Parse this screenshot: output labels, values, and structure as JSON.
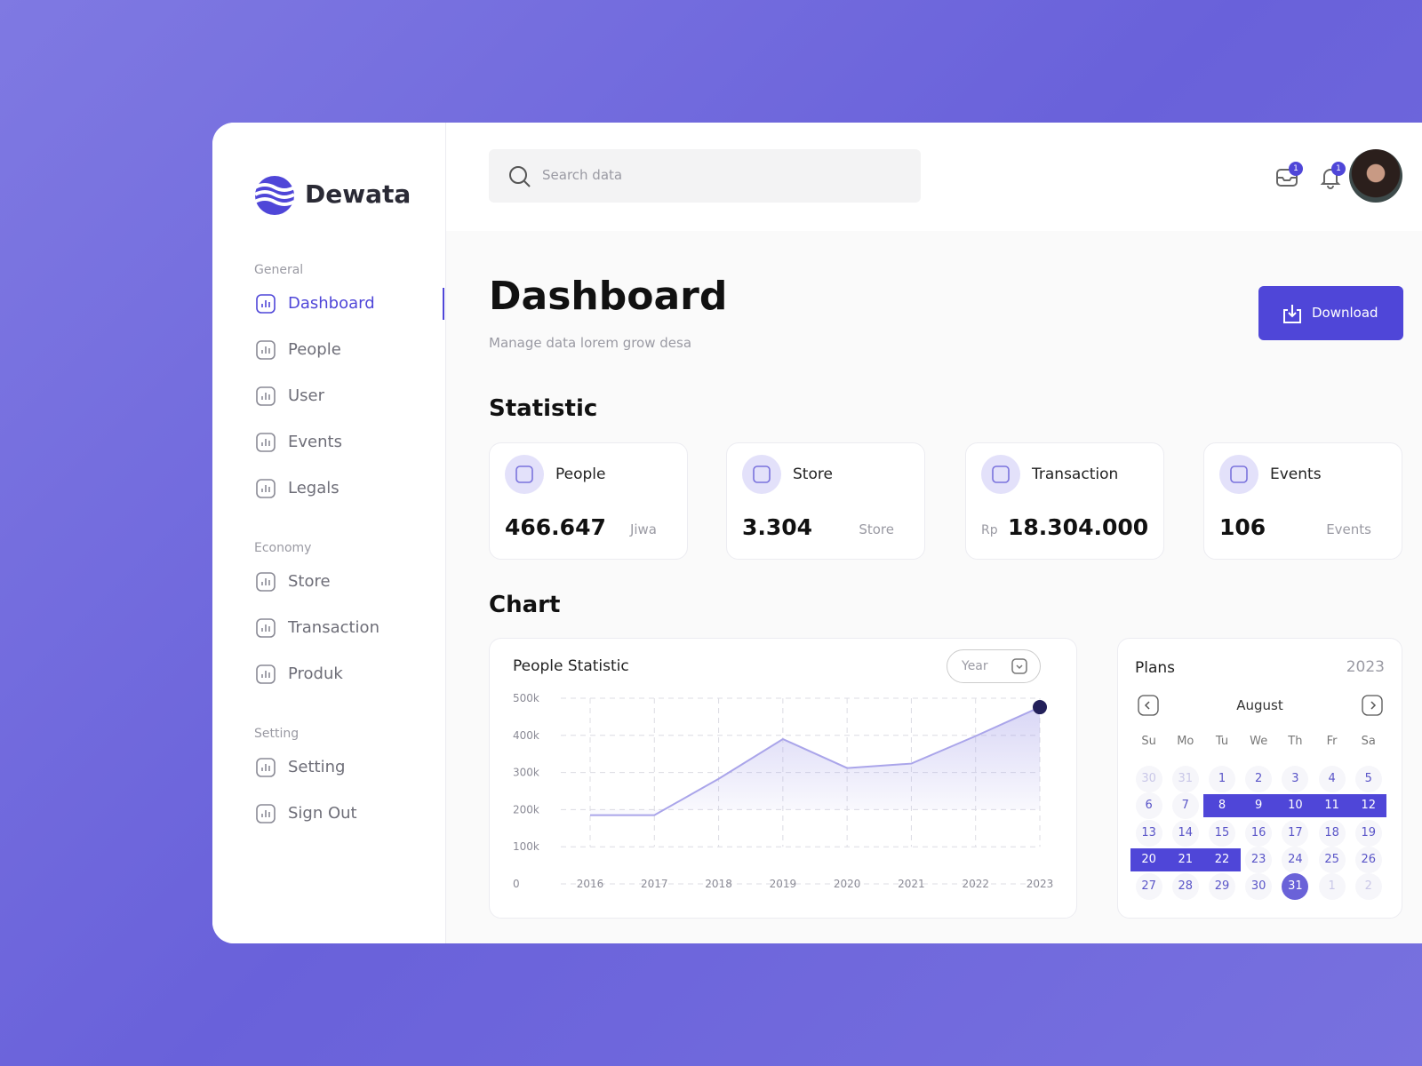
{
  "brand": "Dewata",
  "header": {
    "search_placeholder": "Search data",
    "mail_badge": "1",
    "bell_badge": "1"
  },
  "sidebar": {
    "sections": [
      {
        "title": "General",
        "items": [
          "Dashboard",
          "People",
          "User",
          "Events",
          "Legals"
        ]
      },
      {
        "title": "Economy",
        "items": [
          "Store",
          "Transaction",
          "Produk"
        ]
      },
      {
        "title": "Setting",
        "items": [
          "Setting",
          "Sign Out"
        ]
      }
    ]
  },
  "page": {
    "title": "Dashboard",
    "subtitle": "Manage data lorem grow desa",
    "download": "Download"
  },
  "statistic": {
    "heading": "Statistic",
    "cards": [
      {
        "label": "People",
        "value": "466.647",
        "unit": "Jiwa"
      },
      {
        "label": "Store",
        "value": "3.304",
        "unit": "Store"
      },
      {
        "label": "Transaction",
        "prefix": "Rp",
        "value": "18.304.000"
      },
      {
        "label": "Events",
        "value": "106",
        "unit": "Events"
      }
    ]
  },
  "chart_heading": "Chart",
  "chart_data": {
    "type": "line",
    "title": "People Statistic",
    "filter": "Year",
    "categories": [
      "2016",
      "2017",
      "2018",
      "2019",
      "2020",
      "2021",
      "2022",
      "2023"
    ],
    "values": [
      185000,
      185000,
      283000,
      390000,
      312000,
      324000,
      398000,
      476000
    ],
    "color": "#aaa5ea",
    "ylim": [
      0,
      500000
    ],
    "yticks": [
      0,
      {
        "value": 100000,
        "label": "100k"
      },
      {
        "value": 200000,
        "label": "200k"
      },
      {
        "value": 300000,
        "label": "300k"
      },
      {
        "value": 400000,
        "label": "400k"
      },
      {
        "value": 500000,
        "label": "500k"
      }
    ],
    "grid": true
  },
  "plans": {
    "title": "Plans",
    "year": "2023",
    "month": "August",
    "weekdays": [
      "Su",
      "Mo",
      "Tu",
      "We",
      "Th",
      "Fr",
      "Sa"
    ],
    "weeks": [
      [
        {
          "day": "30",
          "state": "other"
        },
        {
          "day": "31",
          "state": "other"
        },
        {
          "day": "1",
          "state": "normal"
        },
        {
          "day": "2",
          "state": "normal"
        },
        {
          "day": "3",
          "state": "normal"
        },
        {
          "day": "4",
          "state": "normal"
        },
        {
          "day": "5",
          "state": "normal"
        }
      ],
      [
        {
          "day": "6",
          "state": "normal"
        },
        {
          "day": "7",
          "state": "normal"
        },
        {
          "day": "8",
          "state": "range"
        },
        {
          "day": "9",
          "state": "range"
        },
        {
          "day": "10",
          "state": "range"
        },
        {
          "day": "11",
          "state": "range"
        },
        {
          "day": "12",
          "state": "range"
        }
      ],
      [
        {
          "day": "13",
          "state": "normal"
        },
        {
          "day": "14",
          "state": "normal"
        },
        {
          "day": "15",
          "state": "normal"
        },
        {
          "day": "16",
          "state": "normal"
        },
        {
          "day": "17",
          "state": "normal"
        },
        {
          "day": "18",
          "state": "normal"
        },
        {
          "day": "19",
          "state": "normal"
        }
      ],
      [
        {
          "day": "20",
          "state": "range"
        },
        {
          "day": "21",
          "state": "range"
        },
        {
          "day": "22",
          "state": "range"
        },
        {
          "day": "23",
          "state": "normal"
        },
        {
          "day": "24",
          "state": "normal"
        },
        {
          "day": "25",
          "state": "normal"
        },
        {
          "day": "26",
          "state": "normal"
        }
      ],
      [
        {
          "day": "27",
          "state": "normal"
        },
        {
          "day": "28",
          "state": "normal"
        },
        {
          "day": "29",
          "state": "normal"
        },
        {
          "day": "30",
          "state": "normal"
        },
        {
          "day": "31",
          "state": "selected"
        },
        {
          "day": "1",
          "state": "other"
        },
        {
          "day": "2",
          "state": "other"
        }
      ]
    ]
  }
}
